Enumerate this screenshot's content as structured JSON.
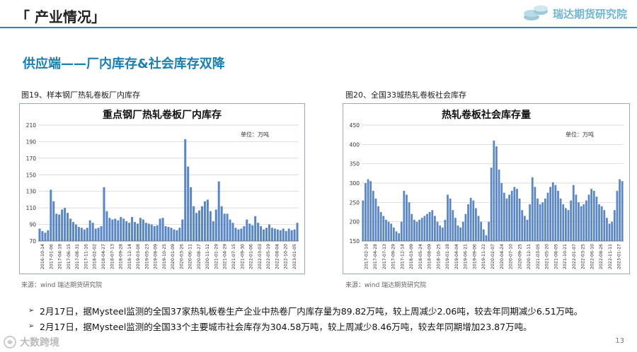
{
  "header": {
    "title": "「 产业情况」",
    "logo_text": "瑞达期货研究院"
  },
  "section_title": "供应端——厂内库存&社会库存双降",
  "figures": [
    {
      "caption": "图19、样本钢厂热轧卷板厂内库存",
      "source": "来源：wind   瑞达期货研究院"
    },
    {
      "caption": "图20、全国33城热轧卷板社会库存",
      "source": "来源：wind   瑞达期货研究院"
    }
  ],
  "chart_data": [
    {
      "type": "bar",
      "title": "重点钢厂热轧卷板厂内库存",
      "unit": "单位：万吨",
      "ylim": [
        70,
        210
      ],
      "yticks": [
        70,
        90,
        110,
        130,
        150,
        170,
        190,
        210
      ],
      "grid": true,
      "color": "#5b86c4",
      "xticks": [
        "2016-10-14",
        "2017-01-06",
        "2017-04-18",
        "2017-06-15",
        "2017-08-31",
        "2017-11-16",
        "2018-02-02",
        "2018-04-27",
        "2018-07-13",
        "2018-09-28",
        "2018-12-14",
        "2019-03-08",
        "2019-05-23",
        "2019-08-09",
        "2019-10-25",
        "2020-01-09",
        "2020-03-26",
        "2020-06-11",
        "2020-08-27",
        "2020-11-12",
        "2021-01-29",
        "2021-04-29",
        "2021-07-15",
        "2021-09-30",
        "2022-01-06",
        "2022-03-03",
        "2022-05-19",
        "2022-08-04",
        "2022-10-20",
        "2023-01-05"
      ],
      "values": [
        85,
        82,
        80,
        83,
        132,
        118,
        103,
        102,
        108,
        110,
        104,
        97,
        93,
        90,
        87,
        86,
        84,
        86,
        95,
        92,
        85,
        86,
        88,
        135,
        106,
        98,
        96,
        97,
        95,
        99,
        97,
        94,
        92,
        99,
        93,
        91,
        98,
        96,
        92,
        91,
        90,
        88,
        89,
        97,
        98,
        88,
        87,
        86,
        84,
        83,
        86,
        96,
        193,
        160,
        135,
        112,
        104,
        107,
        112,
        118,
        120,
        106,
        94,
        108,
        142,
        112,
        103,
        103,
        96,
        92,
        86,
        84,
        85,
        88,
        96,
        91,
        89,
        100,
        92,
        88,
        84,
        86,
        90,
        86,
        85,
        84,
        83,
        85,
        82,
        85,
        83,
        84,
        92
      ]
    },
    {
      "type": "bar",
      "title": "热轧卷板社会库存量",
      "unit": "单位：万吨",
      "ylim": [
        150,
        450
      ],
      "yticks": [
        150,
        200,
        250,
        300,
        350,
        400,
        450
      ],
      "grid": true,
      "color": "#5b86c4",
      "xticks": [
        "2017-02-10",
        "2017-04-28",
        "2017-07-13",
        "2017-09-29",
        "2017-12-14",
        "2018-03-09",
        "2018-05-24",
        "2018-08-09",
        "2018-10-25",
        "2019-01-18",
        "2019-04-04",
        "2019-06-21",
        "2019-09-06",
        "2019-11-22",
        "2020-02-07",
        "2020-04-24",
        "2020-07-10",
        "2020-09-25",
        "2020-12-11",
        "2021-03-05",
        "2021-05-20",
        "2021-08-05",
        "2021-10-21",
        "2022-01-07",
        "2022-03-25",
        "2022-06-10",
        "2022-08-26",
        "2022-11-11",
        "2023-01-27"
      ],
      "values": [
        255,
        300,
        310,
        305,
        280,
        260,
        240,
        225,
        215,
        205,
        200,
        195,
        185,
        175,
        170,
        200,
        280,
        270,
        250,
        220,
        205,
        200,
        205,
        210,
        215,
        220,
        225,
        230,
        215,
        200,
        190,
        185,
        205,
        270,
        260,
        230,
        210,
        190,
        185,
        200,
        220,
        245,
        262,
        255,
        235,
        215,
        200,
        180,
        165,
        200,
        340,
        410,
        395,
        335,
        300,
        275,
        260,
        270,
        280,
        290,
        285,
        260,
        230,
        215,
        205,
        245,
        315,
        290,
        260,
        245,
        250,
        260,
        275,
        290,
        302,
        295,
        280,
        260,
        245,
        235,
        230,
        255,
        295,
        270,
        250,
        240,
        245,
        255,
        270,
        285,
        280,
        265,
        245,
        240,
        230,
        210,
        195,
        200,
        230,
        280,
        310,
        305
      ]
    }
  ],
  "bullets": [
    "2月17日，据Mysteel监测的全国37家热轧板卷生产企业中热卷厂内库存量为89.82万吨，较上周减少2.06吨，较去年同期减少6.51万吨。",
    "2月17日，据Mysteel监测的全国33个主要城市社会库存为304.58万吨，较上周减少8.46万吨，较去年同期增加23.87万吨。"
  ],
  "page_number": "13",
  "watermark": "大数跨境"
}
